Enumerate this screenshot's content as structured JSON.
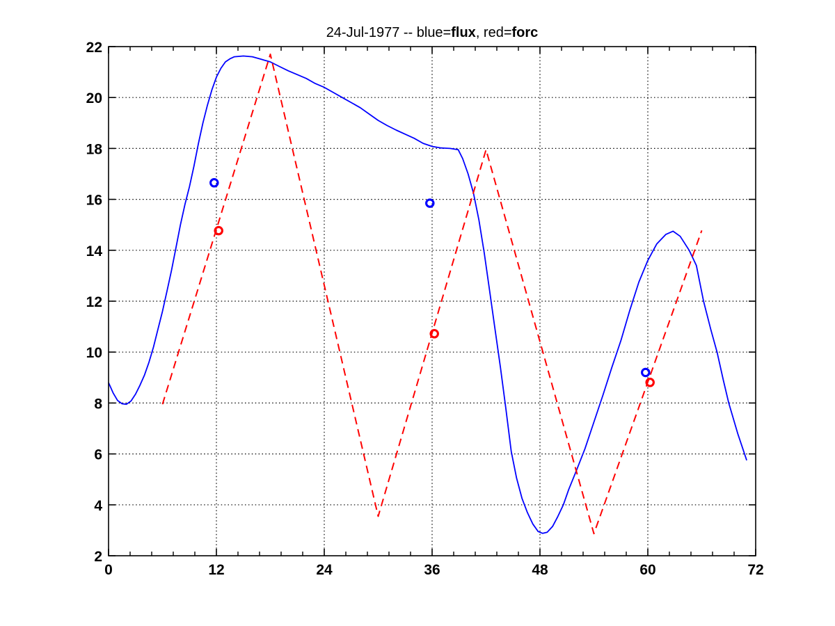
{
  "title": {
    "full": "24-Jul-1977 -- blue=flux, red=forc",
    "prefix": "24-Jul-1977 -- blue=",
    "flux": "flux",
    "mid": ", red=",
    "forc": "forc"
  },
  "colors": {
    "flux": "#0000ff",
    "forc": "#ff0000",
    "axis": "#000000",
    "grid": "#000000",
    "background": "#ffffff"
  },
  "chart_data": {
    "type": "line",
    "title": "24-Jul-1977 -- blue=flux, red=forc",
    "xlabel": "",
    "ylabel": "",
    "xlim": [
      0,
      72
    ],
    "ylim": [
      2,
      22
    ],
    "xticks": [
      0,
      12,
      24,
      36,
      48,
      60,
      72
    ],
    "yticks": [
      2,
      4,
      6,
      8,
      10,
      12,
      14,
      16,
      18,
      20,
      22
    ],
    "x_minor_tick_step": 2.4,
    "grid": "dotted-black-at-major-ticks",
    "legend": "encoded-in-title",
    "box": true,
    "series": [
      {
        "name": "flux",
        "color": "#0000ff",
        "style": "solid",
        "points": [
          [
            0,
            8.8
          ],
          [
            0.5,
            8.4
          ],
          [
            1,
            8.1
          ],
          [
            1.5,
            7.97
          ],
          [
            2,
            7.95
          ],
          [
            2.5,
            8.08
          ],
          [
            3,
            8.35
          ],
          [
            3.5,
            8.7
          ],
          [
            4,
            9.1
          ],
          [
            4.5,
            9.6
          ],
          [
            5,
            10.2
          ],
          [
            5.5,
            10.9
          ],
          [
            6,
            11.6
          ],
          [
            6.5,
            12.4
          ],
          [
            7,
            13.2
          ],
          [
            7.5,
            14.1
          ],
          [
            8,
            15
          ],
          [
            8.5,
            15.8
          ],
          [
            9,
            16.5
          ],
          [
            9.5,
            17.3
          ],
          [
            10,
            18.2
          ],
          [
            10.5,
            19
          ],
          [
            11,
            19.7
          ],
          [
            11.5,
            20.3
          ],
          [
            12,
            20.8
          ],
          [
            12.5,
            21.15
          ],
          [
            13,
            21.4
          ],
          [
            13.5,
            21.52
          ],
          [
            14,
            21.6
          ],
          [
            15,
            21.63
          ],
          [
            16,
            21.6
          ],
          [
            17,
            21.5
          ],
          [
            18,
            21.4
          ],
          [
            19,
            21.22
          ],
          [
            20,
            21.05
          ],
          [
            21,
            20.9
          ],
          [
            22,
            20.75
          ],
          [
            23,
            20.55
          ],
          [
            24,
            20.4
          ],
          [
            25,
            20.2
          ],
          [
            26,
            20
          ],
          [
            27,
            19.8
          ],
          [
            28,
            19.6
          ],
          [
            29,
            19.35
          ],
          [
            30,
            19.1
          ],
          [
            31,
            18.9
          ],
          [
            32,
            18.72
          ],
          [
            33,
            18.56
          ],
          [
            34,
            18.4
          ],
          [
            35,
            18.2
          ],
          [
            36,
            18.08
          ],
          [
            37,
            18.02
          ],
          [
            38,
            18
          ],
          [
            38.9,
            17.95
          ],
          [
            39.4,
            17.6
          ],
          [
            40,
            17
          ],
          [
            40.6,
            16.25
          ],
          [
            41.2,
            15.2
          ],
          [
            41.8,
            13.9
          ],
          [
            42.4,
            12.4
          ],
          [
            43,
            10.9
          ],
          [
            43.6,
            9.4
          ],
          [
            44.2,
            7.8
          ],
          [
            44.8,
            6.1
          ],
          [
            45.4,
            5.05
          ],
          [
            46,
            4.25
          ],
          [
            46.6,
            3.7
          ],
          [
            47.2,
            3.25
          ],
          [
            47.8,
            2.95
          ],
          [
            48.3,
            2.88
          ],
          [
            48.8,
            2.92
          ],
          [
            49.4,
            3.15
          ],
          [
            50,
            3.55
          ],
          [
            50.6,
            4
          ],
          [
            51.2,
            4.6
          ],
          [
            52,
            5.3
          ],
          [
            53,
            6.2
          ],
          [
            54,
            7.25
          ],
          [
            55,
            8.3
          ],
          [
            56,
            9.4
          ],
          [
            57,
            10.45
          ],
          [
            58,
            11.65
          ],
          [
            59,
            12.75
          ],
          [
            60,
            13.6
          ],
          [
            61,
            14.25
          ],
          [
            62,
            14.62
          ],
          [
            62.8,
            14.75
          ],
          [
            63.6,
            14.55
          ],
          [
            64.6,
            14
          ],
          [
            65.4,
            13.4
          ],
          [
            66.2,
            12
          ],
          [
            67,
            10.9
          ],
          [
            67.7,
            10
          ],
          [
            68.4,
            8.9
          ],
          [
            69,
            8
          ],
          [
            70,
            6.8
          ],
          [
            71,
            5.75
          ]
        ]
      },
      {
        "name": "forc",
        "color": "#ff0000",
        "style": "dashed",
        "points": [
          [
            6,
            7.95
          ],
          [
            18,
            21.7
          ],
          [
            30,
            3.55
          ],
          [
            42,
            17.95
          ],
          [
            54,
            2.87
          ],
          [
            66,
            14.78
          ]
        ]
      },
      {
        "name": "flux-observations",
        "color": "#0000ff",
        "style": "circle-markers",
        "points": [
          [
            11.75,
            16.65
          ],
          [
            35.75,
            15.85
          ],
          [
            59.75,
            9.2
          ]
        ]
      },
      {
        "name": "forc-observations",
        "color": "#ff0000",
        "style": "circle-markers",
        "points": [
          [
            12.25,
            14.77
          ],
          [
            36.25,
            10.72
          ],
          [
            60.25,
            8.81
          ]
        ]
      }
    ]
  }
}
